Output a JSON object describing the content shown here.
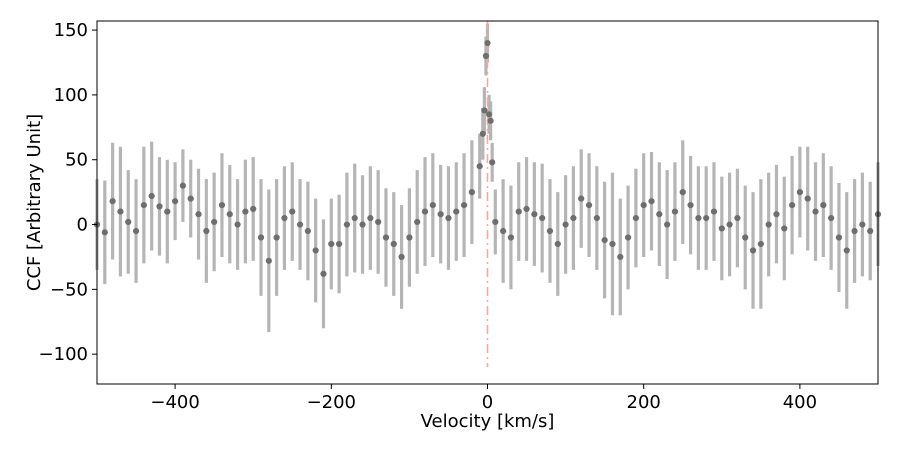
{
  "chart_data": {
    "type": "scatter",
    "xlabel": "Velocity [km/s]",
    "ylabel": "CCF [Arbitrary Unit]",
    "xlim": [
      -500,
      500
    ],
    "ylim": [
      -123,
      157
    ],
    "xticks": [
      -400,
      -200,
      0,
      200,
      400
    ],
    "yticks": [
      -100,
      -50,
      0,
      50,
      100,
      150
    ],
    "grid": false,
    "marker_color": "#6e6e6e",
    "errorbar_color": "#b5b5b5",
    "reference_line": {
      "x": 0,
      "y_range": [
        -110,
        157
      ],
      "color": "#f4a9a0",
      "style": "dash-dot"
    },
    "series": [
      {
        "x": [
          -500,
          -490,
          -480,
          -470,
          -460,
          -450,
          -440,
          -430,
          -420,
          -410,
          -400,
          -390,
          -380,
          -370,
          -360,
          -350,
          -340,
          -330,
          -320,
          -310,
          -300,
          -290,
          -280,
          -270,
          -260,
          -250,
          -240,
          -230,
          -220,
          -210,
          -200,
          -190,
          -180,
          -170,
          -160,
          -150,
          -140,
          -130,
          -120,
          -110,
          -100,
          -90,
          -80,
          -70,
          -60,
          -50,
          -40,
          -30,
          -20,
          -10,
          -6,
          -4,
          -2,
          0,
          2,
          4,
          6,
          10,
          20,
          30,
          40,
          50,
          60,
          70,
          80,
          90,
          100,
          110,
          120,
          130,
          140,
          150,
          160,
          170,
          180,
          190,
          200,
          210,
          220,
          230,
          240,
          250,
          260,
          270,
          280,
          290,
          300,
          310,
          320,
          330,
          340,
          350,
          360,
          370,
          380,
          390,
          400,
          410,
          420,
          430,
          440,
          450,
          460,
          470,
          480,
          490,
          500
        ],
        "y": [
          0,
          -6,
          18,
          10,
          2,
          -5,
          15,
          22,
          14,
          10,
          18,
          30,
          20,
          8,
          -5,
          2,
          15,
          8,
          0,
          10,
          12,
          -10,
          -28,
          -10,
          5,
          10,
          0,
          -5,
          -20,
          -38,
          -15,
          -15,
          0,
          5,
          0,
          5,
          2,
          -10,
          -15,
          -25,
          -10,
          2,
          10,
          15,
          8,
          5,
          10,
          15,
          25,
          45,
          70,
          88,
          130,
          140,
          85,
          80,
          48,
          2,
          -5,
          -10,
          10,
          12,
          8,
          5,
          -5,
          -15,
          0,
          5,
          20,
          15,
          5,
          -12,
          -15,
          -25,
          -10,
          5,
          15,
          18,
          8,
          0,
          10,
          25,
          15,
          5,
          5,
          10,
          -3,
          0,
          5,
          -10,
          -20,
          -15,
          0,
          8,
          -3,
          15,
          25,
          20,
          10,
          15,
          5,
          -10,
          -20,
          -5,
          0,
          -5,
          8
        ],
        "yerr": [
          35,
          40,
          45,
          50,
          40,
          40,
          45,
          42,
          38,
          40,
          30,
          28,
          30,
          35,
          40,
          38,
          40,
          38,
          35,
          40,
          40,
          45,
          55,
          45,
          40,
          38,
          35,
          38,
          40,
          42,
          35,
          38,
          40,
          42,
          38,
          40,
          40,
          38,
          40,
          40,
          38,
          40,
          42,
          40,
          38,
          40,
          38,
          40,
          40,
          25,
          20,
          18,
          15,
          15,
          15,
          15,
          15,
          25,
          40,
          40,
          38,
          40,
          40,
          42,
          40,
          40,
          38,
          40,
          38,
          40,
          40,
          45,
          55,
          45,
          40,
          38,
          40,
          38,
          40,
          42,
          38,
          40,
          38,
          40,
          40,
          38,
          40,
          40,
          38,
          40,
          45,
          50,
          40,
          38,
          40,
          38,
          35,
          40,
          38,
          40,
          40,
          42,
          45,
          40,
          40,
          38,
          40
        ]
      }
    ]
  }
}
